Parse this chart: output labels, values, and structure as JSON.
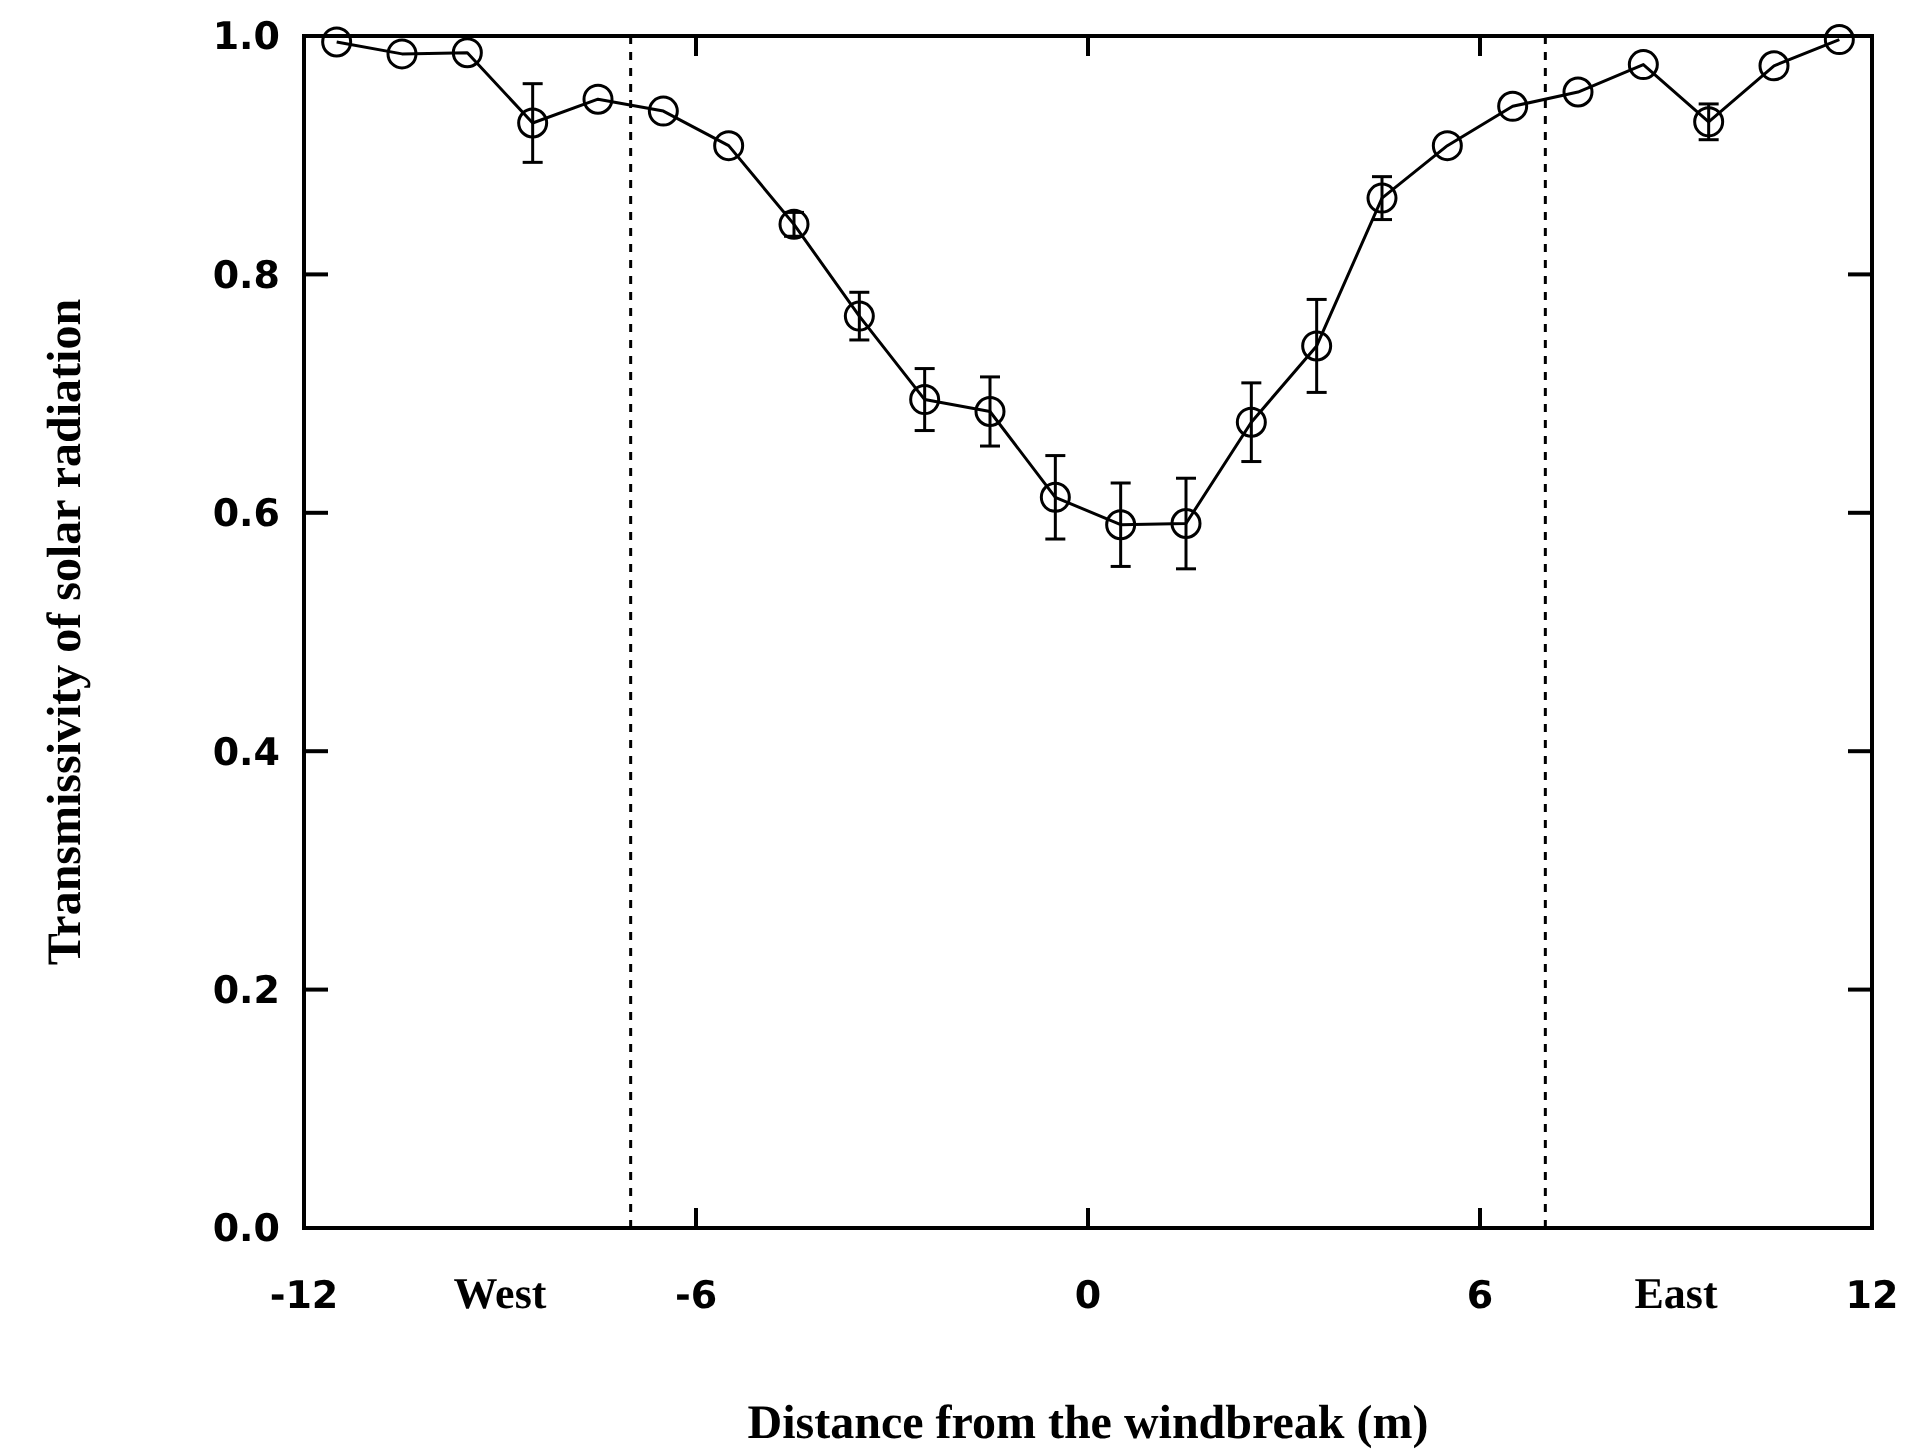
{
  "chart_data": {
    "type": "line",
    "xlabel": "Distance from the windbreak (m)",
    "ylabel": "Transmissivity of solar radiation",
    "x": [
      -11.5,
      -10.5,
      -9.5,
      -8.5,
      -7.5,
      -6.5,
      -5.5,
      -4.5,
      -3.5,
      -2.5,
      -1.5,
      -0.5,
      0.5,
      1.5,
      2.5,
      3.5,
      4.5,
      5.5,
      6.5,
      7.5,
      8.5,
      9.5,
      10.5,
      11.5
    ],
    "series": [
      {
        "color": "#000000",
        "values": [
          0.995,
          0.985,
          0.986,
          0.927,
          0.947,
          0.937,
          0.908,
          0.842,
          0.765,
          0.695,
          0.685,
          0.613,
          0.59,
          0.591,
          0.676,
          0.74,
          0.864,
          0.908,
          0.941,
          0.953,
          0.976,
          0.928,
          0.975,
          0.997
        ],
        "errors": [
          null,
          null,
          null,
          0.033,
          null,
          null,
          null,
          0.01,
          0.02,
          0.026,
          0.029,
          0.035,
          0.035,
          0.038,
          0.033,
          0.039,
          0.018,
          null,
          null,
          null,
          null,
          0.015,
          null,
          null
        ]
      }
    ],
    "xlim": [
      -12,
      12
    ],
    "ylim": [
      0,
      1
    ],
    "xticks": [
      -12,
      -6,
      0,
      6,
      12
    ],
    "yticks": [
      {
        "value": 0,
        "label": "0.0"
      },
      0.2,
      0.4,
      0.6,
      0.8,
      {
        "value": 1,
        "label": "1.0"
      }
    ],
    "ref_lines": [
      {
        "axis": "x",
        "value": -7,
        "line_style": "dashed",
        "color": "#000000"
      },
      {
        "axis": "x",
        "value": 7,
        "line_style": "dashed",
        "color": "#000000"
      }
    ],
    "annotations": [
      "West",
      "East"
    ],
    "marker": "circle",
    "line_style": "solid",
    "grid": false
  }
}
